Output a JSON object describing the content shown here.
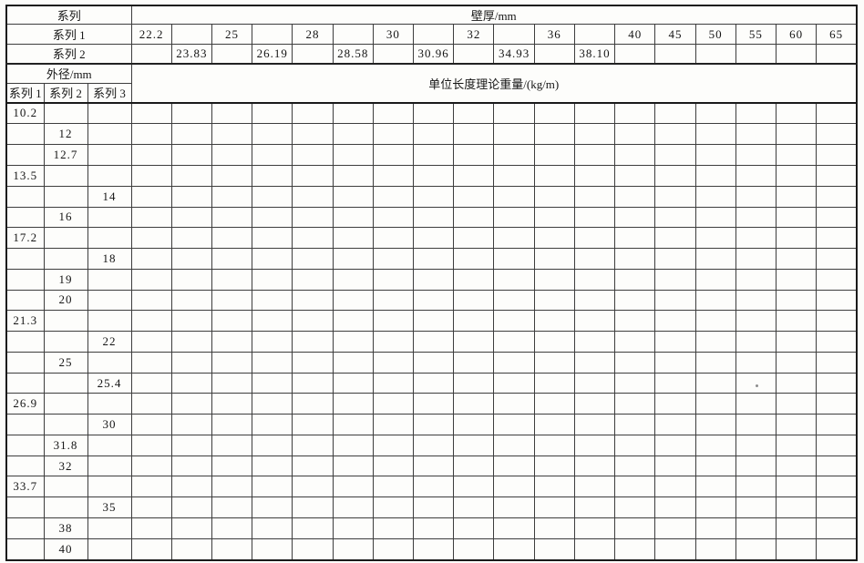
{
  "table": {
    "corner_label": "系列",
    "wall_thickness_header": "壁厚/mm",
    "series1_label": "系列 1",
    "series2_label": "系列 2",
    "outer_diameter_header": "外径/mm",
    "weight_header": "单位长度理论重量/(kg/m)",
    "od_series_labels": [
      "系列 1",
      "系列 2",
      "系列 3"
    ],
    "body_columns": 18,
    "wall_thickness_series1": [
      "22.2",
      "",
      "25",
      "",
      "28",
      "",
      "30",
      "",
      "32",
      "",
      "36",
      "",
      "40",
      "45",
      "50",
      "55",
      "60",
      "65"
    ],
    "wall_thickness_series2": [
      "",
      "23.83",
      "",
      "26.19",
      "",
      "28.58",
      "",
      "30.96",
      "",
      "34.93",
      "",
      "38.10",
      "",
      "",
      "",
      "",
      "",
      ""
    ],
    "od_rows": [
      [
        "10.2",
        "",
        ""
      ],
      [
        "",
        "12",
        ""
      ],
      [
        "",
        "12.7",
        ""
      ],
      [
        "13.5",
        "",
        ""
      ],
      [
        "",
        "",
        "14"
      ],
      [
        "",
        "16",
        ""
      ],
      [
        "17.2",
        "",
        ""
      ],
      [
        "",
        "",
        "18"
      ],
      [
        "",
        "19",
        ""
      ],
      [
        "",
        "20",
        ""
      ],
      [
        "21.3",
        "",
        ""
      ],
      [
        "",
        "",
        "22"
      ],
      [
        "",
        "25",
        ""
      ],
      [
        "",
        "",
        "25.4"
      ],
      [
        "26.9",
        "",
        ""
      ],
      [
        "",
        "",
        "30"
      ],
      [
        "",
        "31.8",
        ""
      ],
      [
        "",
        "32",
        ""
      ],
      [
        "33.7",
        "",
        ""
      ],
      [
        "",
        "",
        "35"
      ],
      [
        "",
        "38",
        ""
      ],
      [
        "",
        "40",
        ""
      ]
    ]
  }
}
